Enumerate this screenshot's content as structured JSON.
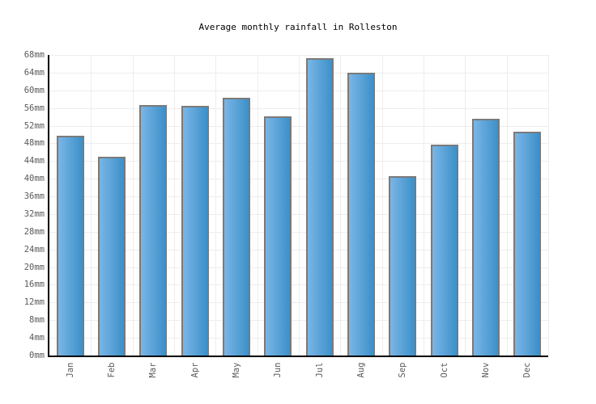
{
  "title": "Average monthly rainfall in Rolleston",
  "colors": {
    "background": "#ffffff",
    "bar_gradient_left": "#79b6e6",
    "bar_gradient_right": "#3c90c9",
    "bar_border": "#7a7a7a",
    "gridline": "#ededed",
    "axis": "#000000",
    "tick_label": "#5a5a5a",
    "title_text": "#000000"
  },
  "chart_data": {
    "type": "bar",
    "title": "Average monthly rainfall in Rolleston",
    "categories": [
      "Jan",
      "Feb",
      "Mar",
      "Apr",
      "May",
      "Jun",
      "Jul",
      "Aug",
      "Sep",
      "Oct",
      "Nov",
      "Dec"
    ],
    "values": [
      49.7,
      45.0,
      56.6,
      56.5,
      58.4,
      54.1,
      67.3,
      63.9,
      40.5,
      47.7,
      53.5,
      50.6
    ],
    "unit": "mm",
    "xlabel": "",
    "ylabel": "",
    "ylim": [
      0,
      68
    ],
    "ytick_step": 4,
    "ytick_labels": [
      "0mm",
      "4mm",
      "8mm",
      "12mm",
      "16mm",
      "20mm",
      "24mm",
      "28mm",
      "32mm",
      "36mm",
      "40mm",
      "44mm",
      "48mm",
      "52mm",
      "56mm",
      "60mm",
      "64mm",
      "68mm"
    ],
    "grid": true,
    "legend_position": "none"
  }
}
